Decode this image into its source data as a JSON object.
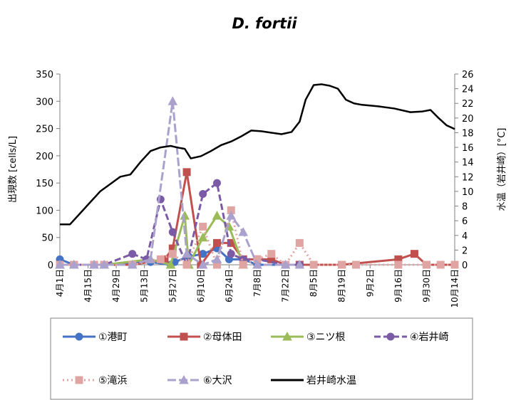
{
  "chart_data": {
    "type": "line",
    "title": "D. fortii",
    "ylabel": "出現数 [cells/L]",
    "y2label": "水温（岩井崎）[°C]",
    "ylim": [
      0,
      350
    ],
    "yticks": [
      0,
      50,
      100,
      150,
      200,
      250,
      300,
      350
    ],
    "y2lim": [
      0,
      26
    ],
    "y2ticks": [
      0,
      2,
      4,
      6,
      8,
      10,
      12,
      14,
      16,
      18,
      20,
      22,
      24,
      26
    ],
    "xlim": [
      0,
      196
    ],
    "xticks": [
      {
        "label": "4月1日",
        "day": 0
      },
      {
        "label": "4月15日",
        "day": 14
      },
      {
        "label": "4月29日",
        "day": 28
      },
      {
        "label": "5月13日",
        "day": 42
      },
      {
        "label": "5月27日",
        "day": 56
      },
      {
        "label": "6月10日",
        "day": 70
      },
      {
        "label": "6月24日",
        "day": 84
      },
      {
        "label": "7月8日",
        "day": 98
      },
      {
        "label": "7月22日",
        "day": 112
      },
      {
        "label": "8月5日",
        "day": 126
      },
      {
        "label": "8月19日",
        "day": 140
      },
      {
        "label": "9月2日",
        "day": 154
      },
      {
        "label": "9月16日",
        "day": 168
      },
      {
        "label": "9月30日",
        "day": 182
      },
      {
        "label": "10月14日",
        "day": 196
      }
    ],
    "legend_position": "bottom",
    "series": [
      {
        "name": "①港町",
        "color": "#4472c4",
        "dash": "",
        "marker": "circle",
        "axis": "left",
        "x": [
          0,
          7,
          17,
          22,
          45,
          55,
          57,
          64,
          71,
          78,
          84,
          91,
          98,
          112,
          119
        ],
        "y": [
          10,
          0,
          0,
          0,
          5,
          0,
          5,
          15,
          20,
          30,
          10,
          10,
          0,
          0,
          0
        ]
      },
      {
        "name": "②母体田",
        "color": "#c0504d",
        "dash": "",
        "marker": "square",
        "axis": "left",
        "x": [
          0,
          7,
          17,
          22,
          36,
          52,
          56,
          63,
          70,
          78,
          85,
          91,
          98,
          105,
          112,
          119,
          140,
          168,
          176,
          182,
          196
        ],
        "y": [
          0,
          0,
          0,
          0,
          0,
          10,
          30,
          170,
          0,
          40,
          40,
          10,
          10,
          10,
          0,
          0,
          0,
          10,
          20,
          0,
          0
        ]
      },
      {
        "name": "③ニツ根",
        "color": "#9bbb59",
        "dash": "",
        "marker": "triangle",
        "axis": "left",
        "x": [
          0,
          7,
          17,
          22,
          45,
          55,
          62,
          64,
          71,
          78,
          84,
          91
        ],
        "y": [
          0,
          0,
          0,
          0,
          10,
          0,
          90,
          0,
          50,
          90,
          70,
          0
        ]
      },
      {
        "name": "④岩井崎",
        "color": "#7b5ba6",
        "dash": "9,4",
        "marker": "circle",
        "axis": "left",
        "x": [
          0,
          7,
          17,
          22,
          36,
          43,
          50,
          56,
          63,
          71,
          78,
          85,
          91,
          98,
          112,
          119
        ],
        "y": [
          0,
          0,
          0,
          0,
          20,
          10,
          120,
          60,
          0,
          130,
          150,
          20,
          10,
          10,
          0,
          0
        ]
      },
      {
        "name": "⑤滝浜",
        "color": "#e0a4a2",
        "dash": "2,4",
        "marker": "square",
        "axis": "left",
        "x": [
          0,
          7,
          17,
          22,
          36,
          50,
          56,
          63,
          71,
          78,
          85,
          91,
          98,
          105,
          112,
          119,
          126,
          140,
          147,
          168,
          182,
          189,
          196
        ],
        "y": [
          0,
          0,
          0,
          0,
          0,
          10,
          20,
          0,
          70,
          0,
          100,
          0,
          10,
          20,
          0,
          40,
          0,
          0,
          0,
          0,
          0,
          0,
          0
        ]
      },
      {
        "name": "⑥大沢",
        "color": "#aaa2cc",
        "dash": "12,4",
        "marker": "triangle",
        "axis": "left",
        "x": [
          0,
          7,
          17,
          22,
          36,
          45,
          56,
          63,
          71,
          78,
          85,
          91,
          98,
          112,
          119
        ],
        "y": [
          0,
          0,
          0,
          0,
          0,
          10,
          300,
          20,
          0,
          10,
          90,
          60,
          0,
          0,
          0
        ]
      },
      {
        "name": "岩井崎水温",
        "color": "#000000",
        "dash": "",
        "marker": "none",
        "axis": "right",
        "x": [
          0,
          5,
          10,
          15,
          20,
          25,
          30,
          35,
          40,
          45,
          50,
          55,
          58,
          62,
          65,
          70,
          75,
          80,
          85,
          90,
          95,
          100,
          105,
          110,
          115,
          119,
          122,
          126,
          130,
          134,
          138,
          142,
          146,
          150,
          158,
          166,
          174,
          180,
          184,
          188,
          192,
          196
        ],
        "y": [
          5.5,
          5.5,
          7,
          8.5,
          10,
          11,
          12,
          12.3,
          14,
          15.5,
          16,
          16.2,
          16,
          15.8,
          14.5,
          14.8,
          15.5,
          16.3,
          16.8,
          17.5,
          18.3,
          18.2,
          18,
          17.8,
          18.1,
          19.5,
          22.5,
          24.5,
          24.6,
          24.4,
          24,
          22.5,
          22,
          21.8,
          21.6,
          21.3,
          20.8,
          20.9,
          21.1,
          20,
          19,
          18.5
        ]
      }
    ]
  }
}
